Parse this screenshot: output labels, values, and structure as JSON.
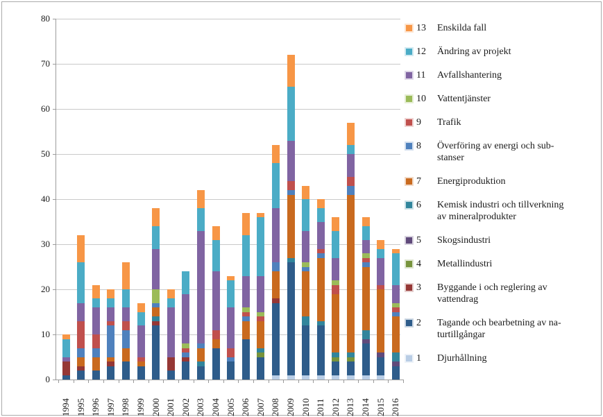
{
  "window": {
    "background": "#ffffff",
    "frame_border_color": "#a9a9a9"
  },
  "chart_data": {
    "type": "bar",
    "variant": "stacked",
    "title": "",
    "xlabel": "",
    "ylabel": "",
    "grid": true,
    "x_label_rotation_deg": -90,
    "categories": [
      "1994",
      "1995",
      "1996",
      "1997",
      "1998",
      "1999",
      "2000",
      "2001",
      "2002",
      "2003",
      "2004",
      "2005",
      "2006",
      "2007",
      "2008",
      "2009",
      "2010",
      "2011",
      "2012",
      "2013",
      "2014",
      "2015",
      "2016"
    ],
    "y_axis": {
      "min": 0,
      "max": 80,
      "step": 10,
      "tick_labels": [
        "0",
        "10",
        "20",
        "30",
        "40",
        "50",
        "60",
        "70",
        "80"
      ]
    },
    "totals": [
      10,
      32,
      21,
      20,
      26,
      17,
      38,
      20,
      24,
      42,
      34,
      23,
      37,
      37,
      52,
      72,
      43,
      40,
      36,
      57,
      36,
      31,
      29
    ],
    "series": [
      {
        "number": 1,
        "name": "Djurhållning",
        "color": "#b9cde5",
        "values": [
          0,
          0,
          0,
          0,
          0,
          0,
          0,
          0,
          0,
          0,
          0,
          0,
          0,
          0,
          1,
          1,
          1,
          1,
          1,
          1,
          1,
          1,
          0
        ]
      },
      {
        "number": 2,
        "name": "Tagande och bearbetning av naturtillgångar",
        "color": "#2e5c8a",
        "values": [
          1,
          2,
          2,
          3,
          4,
          3,
          12,
          2,
          4,
          3,
          7,
          4,
          9,
          5,
          16,
          25,
          11,
          11,
          3,
          3,
          7,
          4,
          3
        ]
      },
      {
        "number": 3,
        "name": "Byggande i och reglering av vattendrag",
        "color": "#953735",
        "values": [
          3,
          1,
          0,
          1,
          0,
          0,
          1,
          3,
          1,
          0,
          0,
          0,
          0,
          0,
          1,
          0,
          0,
          0,
          0,
          0,
          0,
          0,
          0
        ]
      },
      {
        "number": 4,
        "name": "Metallindustri",
        "color": "#77933c",
        "values": [
          0,
          0,
          0,
          0,
          0,
          0,
          0,
          0,
          0,
          0,
          0,
          0,
          0,
          1,
          0,
          0,
          0,
          0,
          1,
          1,
          0,
          0,
          0
        ]
      },
      {
        "number": 5,
        "name": "Skogsindustri",
        "color": "#604a7b",
        "values": [
          0,
          0,
          0,
          0,
          0,
          0,
          0,
          0,
          0,
          0,
          0,
          0,
          0,
          0,
          0,
          0,
          0,
          0,
          0,
          0,
          1,
          1,
          1
        ]
      },
      {
        "number": 6,
        "name": "Kemisk industri och tillverkning av mineralprodukter",
        "color": "#31859c",
        "values": [
          0,
          0,
          0,
          0,
          0,
          0,
          1,
          0,
          0,
          1,
          0,
          0,
          0,
          1,
          0,
          1,
          2,
          1,
          1,
          1,
          2,
          0,
          2
        ]
      },
      {
        "number": 7,
        "name": "Energiproduktion",
        "color": "#c96a1f",
        "values": [
          0,
          2,
          3,
          1,
          3,
          1,
          2,
          0,
          0,
          3,
          2,
          0,
          4,
          6,
          6,
          14,
          10,
          14,
          13,
          35,
          14,
          14,
          8
        ]
      },
      {
        "number": 8,
        "name": "Överföring av energi och substanser",
        "color": "#4f81bd",
        "values": [
          0,
          2,
          2,
          7,
          4,
          0,
          1,
          0,
          1,
          1,
          0,
          1,
          1,
          0,
          2,
          1,
          1,
          1,
          0,
          2,
          1,
          0,
          1
        ]
      },
      {
        "number": 9,
        "name": "Trafik",
        "color": "#c0504d",
        "values": [
          0,
          6,
          3,
          1,
          2,
          1,
          0,
          0,
          1,
          0,
          2,
          2,
          1,
          1,
          0,
          2,
          0,
          1,
          2,
          2,
          1,
          1,
          1
        ]
      },
      {
        "number": 10,
        "name": "Vattentjänster",
        "color": "#9bbb59",
        "values": [
          0,
          0,
          0,
          0,
          0,
          0,
          3,
          0,
          1,
          0,
          0,
          0,
          1,
          1,
          0,
          0,
          1,
          0,
          1,
          0,
          1,
          0,
          1
        ]
      },
      {
        "number": 11,
        "name": "Avfallshantering",
        "color": "#8064a2",
        "values": [
          1,
          4,
          6,
          3,
          3,
          7,
          9,
          11,
          11,
          25,
          13,
          9,
          7,
          8,
          12,
          9,
          7,
          6,
          5,
          5,
          3,
          6,
          4
        ]
      },
      {
        "number": 12,
        "name": "Ändring av projekt",
        "color": "#4bacc6",
        "values": [
          4,
          9,
          2,
          2,
          4,
          3,
          5,
          2,
          5,
          5,
          7,
          6,
          9,
          13,
          10,
          12,
          7,
          3,
          6,
          2,
          3,
          2,
          7
        ]
      },
      {
        "number": 13,
        "name": "Enskilda fall",
        "color": "#f79646",
        "values": [
          1,
          6,
          3,
          2,
          6,
          2,
          4,
          2,
          0,
          4,
          3,
          1,
          5,
          1,
          4,
          7,
          3,
          2,
          3,
          5,
          2,
          2,
          1
        ]
      }
    ],
    "legend": {
      "position": "right",
      "items": [
        {
          "number": "13",
          "label": "Enskilda fall",
          "color": "#f79646"
        },
        {
          "number": "12",
          "label": "Ändring av projekt",
          "color": "#4bacc6"
        },
        {
          "number": "11",
          "label": "Avfallshantering",
          "color": "#8064a2"
        },
        {
          "number": "10",
          "label": "Vattentjänster",
          "color": "#9bbb59"
        },
        {
          "number": "9",
          "label": "Trafik",
          "color": "#c0504d"
        },
        {
          "number": "8",
          "label": "Överföring av energi och sub-\nstanser",
          "color": "#4f81bd"
        },
        {
          "number": "7",
          "label": "Energiproduktion",
          "color": "#c96a1f"
        },
        {
          "number": "6",
          "label": "Kemisk industri och tillverkning\nav mineralprodukter",
          "color": "#31859c"
        },
        {
          "number": "5",
          "label": "Skogsindustri",
          "color": "#604a7b"
        },
        {
          "number": "4",
          "label": "Metallindustri",
          "color": "#77933c"
        },
        {
          "number": "3",
          "label": "Byggande i och reglering av\nvattendrag",
          "color": "#953735"
        },
        {
          "number": "2",
          "label": "Tagande och bearbetning av na-\nturtillgångar",
          "color": "#2e5c8a"
        },
        {
          "number": "1",
          "label": "Djurhållning",
          "color": "#b9cde5"
        }
      ]
    }
  }
}
